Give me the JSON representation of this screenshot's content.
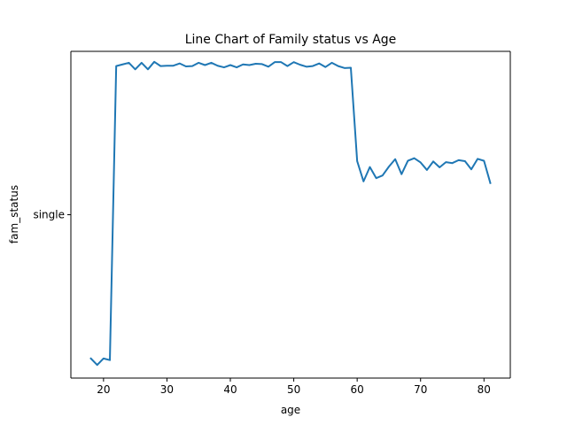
{
  "chart_data": {
    "type": "line",
    "title": "Line Chart of Family status vs Age",
    "xlabel": "age",
    "ylabel": "fam_status",
    "xlim": [
      14.85,
      84.15
    ],
    "xticks": [
      20,
      30,
      40,
      50,
      60,
      70,
      80
    ],
    "ytick_labels": [
      "single"
    ],
    "ytick_value": 0.5,
    "ylim": [
      0.0,
      1.0
    ],
    "grid": false,
    "series": [
      {
        "color": "#1f77b4",
        "x": [
          18,
          19,
          20,
          21,
          22,
          23,
          24,
          25,
          26,
          27,
          28,
          29,
          30,
          31,
          32,
          33,
          34,
          35,
          36,
          37,
          38,
          39,
          40,
          41,
          42,
          43,
          44,
          45,
          46,
          47,
          48,
          49,
          50,
          51,
          52,
          53,
          54,
          55,
          56,
          57,
          58,
          59,
          60,
          61,
          62,
          63,
          64,
          65,
          66,
          67,
          68,
          69,
          70,
          71,
          72,
          73,
          74,
          75,
          76,
          77,
          78,
          79,
          80,
          81
        ],
        "y": [
          0.06,
          0.04,
          0.06,
          0.055,
          0.955,
          0.96,
          0.965,
          0.945,
          0.965,
          0.945,
          0.968,
          0.955,
          0.956,
          0.956,
          0.963,
          0.954,
          0.955,
          0.965,
          0.958,
          0.965,
          0.956,
          0.951,
          0.958,
          0.951,
          0.96,
          0.958,
          0.962,
          0.961,
          0.953,
          0.967,
          0.967,
          0.955,
          0.967,
          0.959,
          0.953,
          0.955,
          0.963,
          0.952,
          0.965,
          0.955,
          0.949,
          0.95,
          0.664,
          0.602,
          0.646,
          0.612,
          0.62,
          0.647,
          0.67,
          0.624,
          0.665,
          0.673,
          0.66,
          0.637,
          0.663,
          0.645,
          0.661,
          0.658,
          0.667,
          0.664,
          0.639,
          0.671,
          0.665,
          0.597
        ]
      }
    ]
  }
}
